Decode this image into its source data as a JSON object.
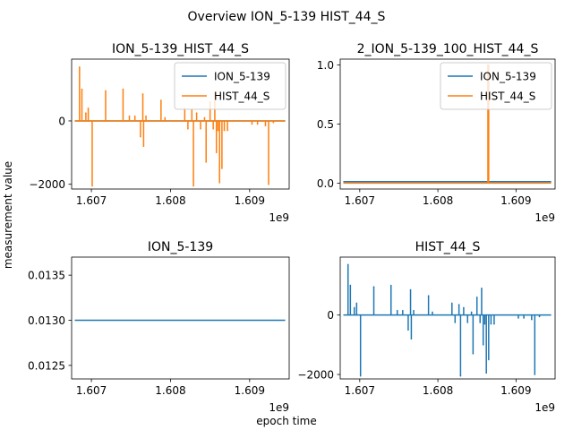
{
  "figure": {
    "suptitle": "Overview ION_5-139 HIST_44_S",
    "xlabel": "epoch time",
    "ylabel": "measurement value"
  },
  "colors": {
    "ION_5-139": "#1f77b4",
    "HIST_44_S": "#ff7f0e"
  },
  "chart_data": [
    {
      "type": "line",
      "title": "ION_5-139_HIST_44_S",
      "xlim": [
        1606750000,
        1609500000
      ],
      "ylim": [
        -2150,
        1950
      ],
      "x_ticks": [
        1607000000,
        1608000000,
        1609000000
      ],
      "x_tick_labels": [
        "1.607",
        "1.608",
        "1.609"
      ],
      "x_offset_label": "1e9",
      "y_ticks": [
        -2000,
        0
      ],
      "y_tick_labels": [
        "−2000",
        "0"
      ],
      "legend": {
        "location": "upper right",
        "entries": [
          "ION_5-139",
          "HIST_44_S"
        ]
      },
      "series": [
        {
          "name": "ION_5-139",
          "color": "#1f77b4",
          "baseline": 0.013,
          "x": [
            1606790000,
            1609450000
          ],
          "y": [
            0.013,
            0.013
          ]
        },
        {
          "name": "HIST_44_S",
          "color": "#ff7f0e",
          "baseline": 0,
          "x": [
            1606790000,
            1609450000
          ],
          "y": [
            0,
            0
          ],
          "spikes": [
            [
              1606850000,
              1700
            ],
            [
              1606880000,
              1000
            ],
            [
              1606930000,
              250
            ],
            [
              1606960000,
              400
            ],
            [
              1607010000,
              -2050
            ],
            [
              1607180000,
              950
            ],
            [
              1607400000,
              1000
            ],
            [
              1607480000,
              150
            ],
            [
              1607550000,
              150
            ],
            [
              1607620000,
              -500
            ],
            [
              1607650000,
              850
            ],
            [
              1607660000,
              -800
            ],
            [
              1607690000,
              150
            ],
            [
              1607880000,
              650
            ],
            [
              1607930000,
              100
            ],
            [
              1608180000,
              400
            ],
            [
              1608220000,
              -250
            ],
            [
              1608270000,
              350
            ],
            [
              1608290000,
              -2050
            ],
            [
              1608330000,
              250
            ],
            [
              1608380000,
              -250
            ],
            [
              1608430000,
              100
            ],
            [
              1608450000,
              -1300
            ],
            [
              1608500000,
              600
            ],
            [
              1608540000,
              -250
            ],
            [
              1608560000,
              900
            ],
            [
              1608580000,
              -1000
            ],
            [
              1608600000,
              -300
            ],
            [
              1608620000,
              -1950
            ],
            [
              1608650000,
              -1500
            ],
            [
              1608680000,
              -300
            ],
            [
              1608720000,
              -300
            ],
            [
              1609030000,
              -100
            ],
            [
              1609100000,
              -100
            ],
            [
              1609200000,
              -150
            ],
            [
              1609240000,
              -2000
            ],
            [
              1609300000,
              -50
            ]
          ]
        }
      ]
    },
    {
      "type": "line",
      "title": "2_ION_5-139_100_HIST_44_S",
      "xlim": [
        1606750000,
        1609500000
      ],
      "ylim": [
        -0.05,
        1.05
      ],
      "x_ticks": [
        1607000000,
        1608000000,
        1609000000
      ],
      "x_tick_labels": [
        "1.607",
        "1.608",
        "1.609"
      ],
      "x_offset_label": "1e9",
      "y_ticks": [
        0.0,
        0.5,
        1.0
      ],
      "y_tick_labels": [
        "0.0",
        "0.5",
        "1.0"
      ],
      "legend": {
        "location": "upper right",
        "entries": [
          "ION_5-139",
          "HIST_44_S"
        ]
      },
      "series": [
        {
          "name": "ION_5-139",
          "color": "#1f77b4",
          "baseline": 0.013,
          "x": [
            1606790000,
            1609450000
          ],
          "y": [
            0.013,
            0.013
          ]
        },
        {
          "name": "HIST_44_S",
          "color": "#ff7f0e",
          "baseline": 0,
          "x": [
            1606790000,
            1609450000
          ],
          "y": [
            0,
            0
          ],
          "spikes": [
            [
              1608640000,
              1.0
            ],
            [
              1608645000,
              1.0
            ],
            [
              1608650000,
              1.0
            ]
          ]
        }
      ]
    },
    {
      "type": "line",
      "title": "ION_5-139",
      "xlim": [
        1606750000,
        1609500000
      ],
      "ylim": [
        0.01235,
        0.0137
      ],
      "x_ticks": [
        1607000000,
        1608000000,
        1609000000
      ],
      "x_tick_labels": [
        "1.607",
        "1.608",
        "1.609"
      ],
      "x_offset_label": "1e9",
      "y_ticks": [
        0.0125,
        0.013,
        0.0135
      ],
      "y_tick_labels": [
        "0.0125",
        "0.0130",
        "0.0135"
      ],
      "series": [
        {
          "name": "ION_5-139",
          "color": "#1f77b4",
          "baseline": 0.013,
          "x": [
            1606790000,
            1609450000
          ],
          "y": [
            0.013,
            0.013
          ]
        }
      ]
    },
    {
      "type": "line",
      "title": "HIST_44_S",
      "xlim": [
        1606750000,
        1609500000
      ],
      "ylim": [
        -2150,
        1950
      ],
      "x_ticks": [
        1607000000,
        1608000000,
        1609000000
      ],
      "x_tick_labels": [
        "1.607",
        "1.608",
        "1.609"
      ],
      "x_offset_label": "1e9",
      "y_ticks": [
        -2000,
        0
      ],
      "y_tick_labels": [
        "−2000",
        "0"
      ],
      "series": [
        {
          "name": "HIST_44_S",
          "color": "#1f77b4",
          "baseline": 0,
          "x": [
            1606790000,
            1609450000
          ],
          "y": [
            0,
            0
          ],
          "spikes": [
            [
              1606850000,
              1700
            ],
            [
              1606880000,
              1000
            ],
            [
              1606930000,
              250
            ],
            [
              1606960000,
              400
            ],
            [
              1607010000,
              -2050
            ],
            [
              1607180000,
              950
            ],
            [
              1607400000,
              1000
            ],
            [
              1607480000,
              150
            ],
            [
              1607550000,
              150
            ],
            [
              1607620000,
              -500
            ],
            [
              1607650000,
              850
            ],
            [
              1607660000,
              -800
            ],
            [
              1607690000,
              150
            ],
            [
              1607880000,
              650
            ],
            [
              1607930000,
              100
            ],
            [
              1608180000,
              400
            ],
            [
              1608220000,
              -250
            ],
            [
              1608270000,
              350
            ],
            [
              1608290000,
              -2050
            ],
            [
              1608330000,
              250
            ],
            [
              1608380000,
              -250
            ],
            [
              1608430000,
              100
            ],
            [
              1608450000,
              -1300
            ],
            [
              1608500000,
              600
            ],
            [
              1608540000,
              -250
            ],
            [
              1608560000,
              900
            ],
            [
              1608580000,
              -1000
            ],
            [
              1608600000,
              -300
            ],
            [
              1608620000,
              -1950
            ],
            [
              1608650000,
              -1500
            ],
            [
              1608680000,
              -300
            ],
            [
              1608720000,
              -300
            ],
            [
              1609030000,
              -100
            ],
            [
              1609100000,
              -100
            ],
            [
              1609200000,
              -150
            ],
            [
              1609240000,
              -2000
            ],
            [
              1609300000,
              -50
            ]
          ]
        }
      ]
    }
  ]
}
